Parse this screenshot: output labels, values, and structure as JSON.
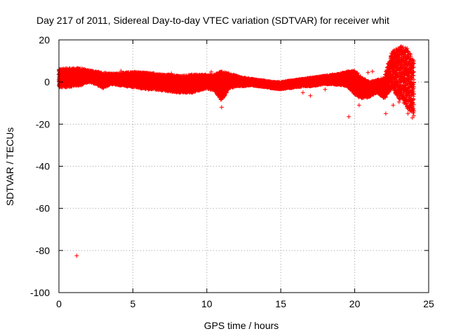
{
  "chart_data": {
    "type": "scatter",
    "title": "Day 217 of 2011, Sidereal Day-to-day VTEC variation (SDTVAR) for receiver whit",
    "xlabel": "GPS time / hours",
    "ylabel": "SDTVAR / TECUs",
    "xlim": [
      0,
      25
    ],
    "ylim": [
      -100,
      20
    ],
    "xticks": [
      0,
      5,
      10,
      15,
      20,
      25
    ],
    "yticks": [
      -100,
      -80,
      -60,
      -40,
      -20,
      0,
      20
    ],
    "xtick_labels": [
      "0",
      "5",
      "10",
      "15",
      "20",
      "25"
    ],
    "ytick_labels": [
      "-100",
      "-80",
      "-60",
      "-40",
      "-20",
      "0",
      "20"
    ],
    "grid": true,
    "marker": "+",
    "color": "#ff0000",
    "series": [
      {
        "name": "SDTVAR",
        "band": [
          [
            0.0,
            -2.5,
            6.0
          ],
          [
            0.5,
            -2.5,
            6.5
          ],
          [
            1.0,
            -2.0,
            6.5
          ],
          [
            1.5,
            -1.5,
            6.5
          ],
          [
            2.0,
            0.0,
            5.5
          ],
          [
            2.5,
            -1.0,
            5.0
          ],
          [
            3.0,
            -3.0,
            4.5
          ],
          [
            3.5,
            -1.0,
            4.0
          ],
          [
            4.0,
            -1.5,
            4.0
          ],
          [
            4.5,
            -2.0,
            4.5
          ],
          [
            5.0,
            -2.5,
            5.0
          ],
          [
            5.5,
            -3.0,
            4.5
          ],
          [
            6.0,
            -3.5,
            4.5
          ],
          [
            6.5,
            -3.5,
            4.0
          ],
          [
            7.0,
            -4.0,
            3.5
          ],
          [
            7.5,
            -4.5,
            3.5
          ],
          [
            8.0,
            -5.0,
            3.0
          ],
          [
            8.5,
            -5.0,
            3.0
          ],
          [
            9.0,
            -5.0,
            3.5
          ],
          [
            9.5,
            -4.0,
            3.5
          ],
          [
            10.0,
            -3.0,
            3.5
          ],
          [
            10.5,
            -4.0,
            3.5
          ],
          [
            11.0,
            -9.0,
            5.0
          ],
          [
            11.5,
            -3.0,
            4.0
          ],
          [
            12.0,
            -2.0,
            3.0
          ],
          [
            12.5,
            -2.0,
            2.0
          ],
          [
            13.0,
            -1.5,
            1.5
          ],
          [
            13.5,
            -2.0,
            1.0
          ],
          [
            14.0,
            -2.5,
            0.5
          ],
          [
            14.5,
            -3.0,
            0.0
          ],
          [
            15.0,
            -3.5,
            0.0
          ],
          [
            15.5,
            -3.0,
            0.5
          ],
          [
            16.0,
            -2.5,
            1.0
          ],
          [
            16.5,
            -2.0,
            1.5
          ],
          [
            17.0,
            -2.0,
            2.0
          ],
          [
            17.5,
            -1.5,
            2.5
          ],
          [
            18.0,
            -1.0,
            3.0
          ],
          [
            18.5,
            -1.0,
            3.5
          ],
          [
            19.0,
            -1.5,
            4.0
          ],
          [
            19.5,
            -2.0,
            5.0
          ],
          [
            20.0,
            -6.0,
            5.5
          ],
          [
            20.5,
            -8.0,
            2.0
          ],
          [
            21.0,
            -7.0,
            0.0
          ],
          [
            21.5,
            -5.0,
            1.0
          ],
          [
            22.0,
            -8.0,
            2.0
          ],
          [
            22.5,
            -3.0,
            14.0
          ],
          [
            23.0,
            -8.0,
            17.0
          ],
          [
            23.5,
            -12.0,
            17.0
          ],
          [
            24.0,
            -16.0,
            10.0
          ]
        ],
        "outliers": [
          [
            1.2,
            -82.5
          ],
          [
            19.6,
            -16.5
          ],
          [
            20.3,
            -11.0
          ],
          [
            20.9,
            4.5
          ],
          [
            21.2,
            5.0
          ],
          [
            22.1,
            -15.0
          ],
          [
            22.6,
            -11.0
          ],
          [
            23.6,
            -15.0
          ],
          [
            23.9,
            -17.0
          ],
          [
            23.0,
            -9.5
          ],
          [
            11.0,
            -12.0
          ],
          [
            18.0,
            -3.5
          ],
          [
            16.5,
            -5.0
          ],
          [
            23.8,
            6.0
          ],
          [
            22.9,
            12.0
          ],
          [
            23.2,
            2.0
          ],
          [
            17.0,
            -6.5
          ],
          [
            10.3,
            4.8
          ],
          [
            4.2,
            5.2
          ],
          [
            7.6,
            4.0
          ]
        ]
      }
    ]
  }
}
